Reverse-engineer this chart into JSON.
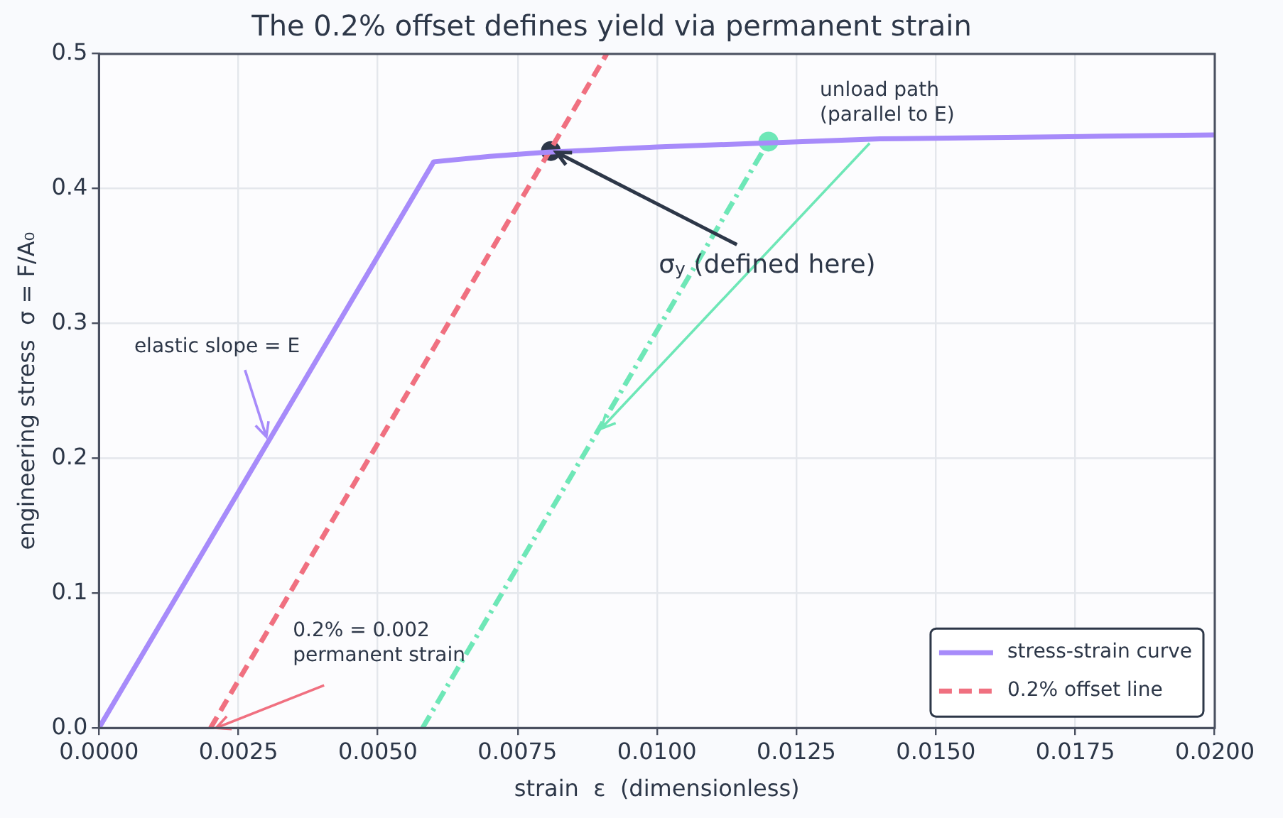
{
  "chart_data": {
    "type": "line",
    "title": "The 0.2% offset defines yield via permanent strain",
    "xlabel": "strain  ε  (dimensionless)",
    "ylabel": "engineering stress  σ = F/A₀",
    "xlim": [
      0,
      0.02
    ],
    "xticks": [
      {
        "value": 0,
        "label": "0.0000"
      },
      {
        "value": 0.0025,
        "label": "0.0025"
      },
      {
        "value": 0.005,
        "label": "0.0050"
      },
      {
        "value": 0.0075,
        "label": "0.0075"
      },
      {
        "value": 0.01,
        "label": "0.0100"
      },
      {
        "value": 0.0125,
        "label": "0.0125"
      },
      {
        "value": 0.015,
        "label": "0.0150"
      },
      {
        "value": 0.0175,
        "label": "0.0175"
      },
      {
        "value": 0.02,
        "label": "0.0200"
      }
    ],
    "ylim": [
      0,
      0.5
    ],
    "yticks": [
      {
        "value": 0,
        "label": "0.0"
      },
      {
        "value": 0.1,
        "label": "0.1"
      },
      {
        "value": 0.2,
        "label": "0.2"
      },
      {
        "value": 0.3,
        "label": "0.3"
      },
      {
        "value": 0.4,
        "label": "0.4"
      },
      {
        "value": 0.5,
        "label": "0.5"
      }
    ],
    "grid": true,
    "legend": "bottom right",
    "series": [
      {
        "name": "stress-strain curve",
        "color": "#a78bfa",
        "marker": "none",
        "line_style": "solid",
        "x": [
          0,
          0.006,
          0.007,
          0.008,
          0.01,
          0.012,
          0.014,
          0.016,
          0.018,
          0.02
        ],
        "values": [
          0,
          0.42,
          0.424,
          0.427,
          0.431,
          0.434,
          0.437,
          0.438,
          0.439,
          0.44
        ]
      },
      {
        "name": "0.2% offset line",
        "color": "#f07080",
        "marker": "none",
        "line_style": "dashed",
        "x": [
          0.002,
          0.0091
        ],
        "values": [
          0,
          0.5
        ]
      },
      {
        "color": "#6ee7b7",
        "marker": "none",
        "line_style": "dashdot",
        "x": [
          0.0058,
          0.012
        ],
        "values": [
          0,
          0.435
        ]
      },
      {
        "type": "scatter",
        "color": "#6ee7b7",
        "marker": "circle",
        "x": [
          0.012
        ],
        "values": [
          0.435
        ]
      },
      {
        "type": "scatter",
        "color": "#2d3748",
        "marker": "circle",
        "x": [
          0.0081
        ],
        "values": [
          0.428
        ]
      }
    ],
    "annotations": [
      {
        "text": "elastic slope = E",
        "x": 0.003,
        "y": 0.216
      },
      {
        "text": "0.2% = 0.002\npermanent strain",
        "x": 0.0021,
        "y": 0
      },
      {
        "text": "unload path\n(parallel to E)",
        "x": 0.009,
        "y": 0.222
      },
      {
        "text": "σ$_{y}$ (defined here)",
        "x": 0.0082,
        "y": 0.427
      }
    ]
  }
}
